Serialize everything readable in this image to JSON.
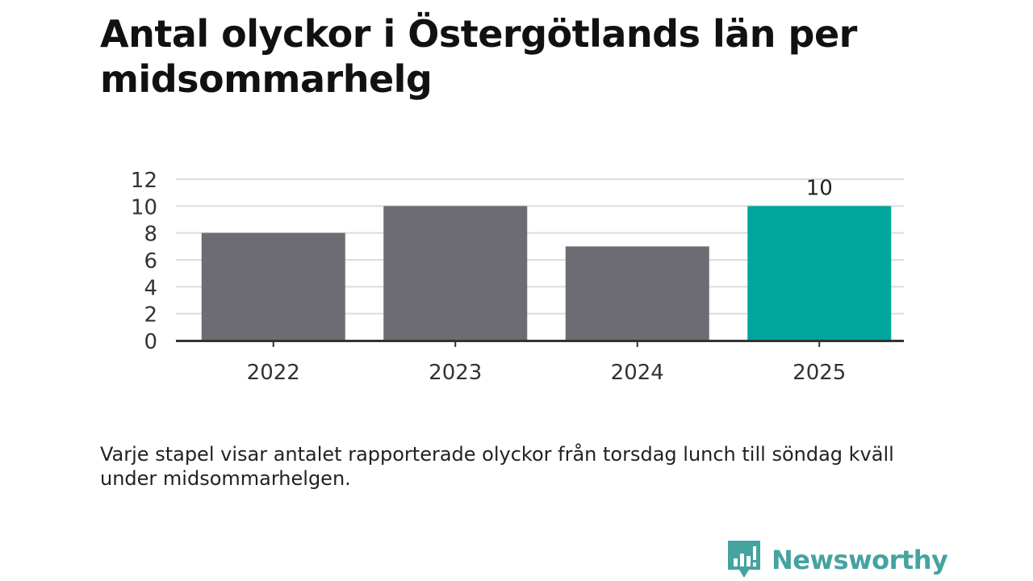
{
  "title": "Antal olyckor i Östergötlands län per midsommarhelg",
  "note": "Varje stapel visar antalet rapporterade olyckor från torsdag lunch till söndag kväll under midsommarhelgen.",
  "brand": {
    "name": "Newsworthy",
    "color": "#45a3a0",
    "icon": "bar-chart-speech-bubble-icon"
  },
  "colors": {
    "bar": "#6d6c73",
    "highlight": "#00a59b",
    "grid": "#dcdcdc",
    "axis": "#333333"
  },
  "chart_data": {
    "type": "bar",
    "categories": [
      "2022",
      "2023",
      "2024",
      "2025"
    ],
    "values": [
      8,
      10,
      7,
      10
    ],
    "highlight_index": 3,
    "data_labels": [
      {
        "index": 3,
        "text": "10"
      }
    ],
    "ylim": [
      0,
      12
    ],
    "yticks": [
      0,
      2,
      4,
      6,
      8,
      10,
      12
    ],
    "grid": true,
    "legend": "none",
    "title": "Antal olyckor i Östergötlands län per midsommarhelg",
    "xlabel": "",
    "ylabel": ""
  }
}
